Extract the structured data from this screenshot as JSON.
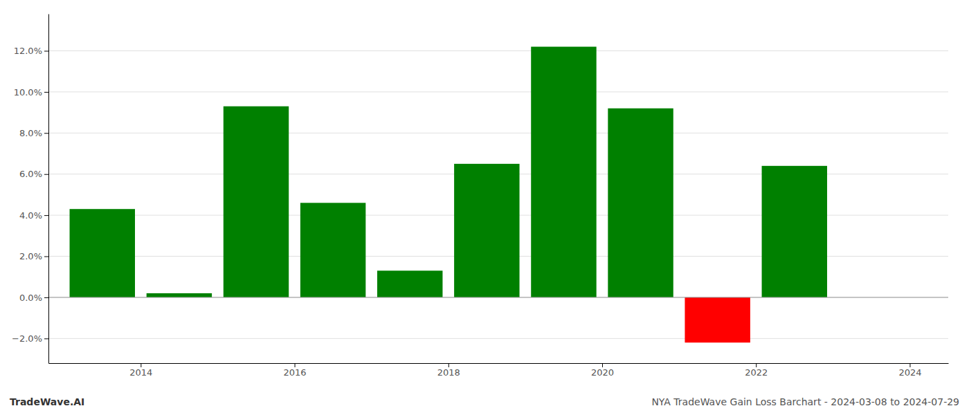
{
  "chart_data": {
    "type": "bar",
    "title": "NYA TradeWave Gain Loss Barchart - 2024-03-08 to 2024-07-29",
    "annotations": [
      "TradeWave.AI"
    ],
    "x": [
      2013.5,
      2014.5,
      2015.5,
      2016.5,
      2017.5,
      2018.5,
      2019.5,
      2020.5,
      2021.5,
      2022.5
    ],
    "values": [
      0.043,
      0.002,
      0.093,
      0.046,
      0.013,
      0.065,
      0.122,
      0.092,
      -0.022,
      0.064
    ],
    "colors": [
      "#008000",
      "#008000",
      "#008000",
      "#008000",
      "#008000",
      "#008000",
      "#008000",
      "#008000",
      "#ff0000",
      "#008000"
    ],
    "xlim": [
      2012.8,
      2024.5
    ],
    "xticks": [
      2014,
      2016,
      2018,
      2020,
      2022,
      2024
    ],
    "ylim": [
      -0.032,
      0.138
    ],
    "yticks": [
      {
        "value": -0.02,
        "label": "−2.0%"
      },
      {
        "value": 0.0,
        "label": "0.0%"
      },
      {
        "value": 0.02,
        "label": "2.0%"
      },
      {
        "value": 0.04,
        "label": "4.0%"
      },
      {
        "value": 0.06,
        "label": "6.0%"
      },
      {
        "value": 0.08,
        "label": "8.0%"
      },
      {
        "value": 0.1,
        "label": "10.0%"
      },
      {
        "value": 0.12,
        "label": "12.0%"
      }
    ],
    "grid": true
  }
}
